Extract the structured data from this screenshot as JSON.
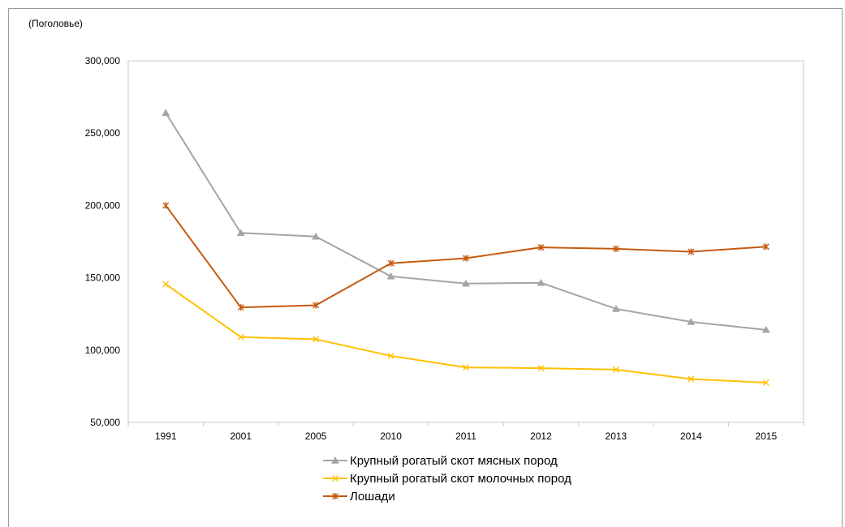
{
  "chart_data": {
    "type": "line",
    "unit_label": "(Поголовье)",
    "categories": [
      "1991",
      "2001",
      "2005",
      "2010",
      "2011",
      "2012",
      "2013",
      "2014",
      "2015"
    ],
    "y_ticks": [
      "300,000",
      "250,000",
      "200,000",
      "150,000",
      "100,000",
      "50,000"
    ],
    "y_tick_values": [
      300000,
      250000,
      200000,
      150000,
      100000,
      50000
    ],
    "ylim": [
      50000,
      300000
    ],
    "grid": false,
    "legend_position": "bottom",
    "series": [
      {
        "name": "Крупный рогатый скот мясных пород",
        "color": "#a5a5a5",
        "marker": "triangle",
        "values": [
          264000,
          181000,
          178500,
          151000,
          146000,
          146500,
          128500,
          119500,
          114000
        ]
      },
      {
        "name": "Крупный рогатый скот молочных пород",
        "color": "#ffc000",
        "marker": "x",
        "values": [
          145500,
          109000,
          107500,
          96000,
          88000,
          87500,
          86500,
          80000,
          77500
        ]
      },
      {
        "name": "Лошади",
        "color": "#c55a11",
        "marker": "star",
        "values": [
          200000,
          129500,
          131000,
          160000,
          163500,
          171000,
          170000,
          168000,
          171500
        ]
      }
    ]
  }
}
